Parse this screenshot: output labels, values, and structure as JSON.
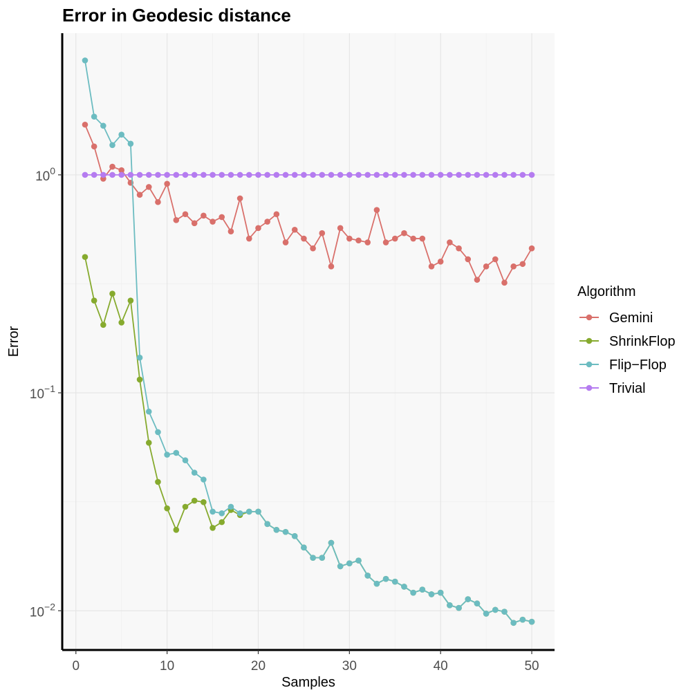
{
  "chart_data": {
    "type": "line",
    "title": "Error in Geodesic distance",
    "xlabel": "Samples",
    "ylabel": "Error",
    "xlim": [
      -1.5,
      52.5
    ],
    "ylim_log10": [
      -2.18,
      0.65
    ],
    "y_scale": "log10",
    "x_ticks": [
      0,
      10,
      20,
      30,
      40,
      50
    ],
    "y_ticks": [
      {
        "value": 1,
        "base": "10",
        "exp": "0"
      },
      {
        "value": 0.1,
        "base": "10",
        "exp": "−1"
      },
      {
        "value": 0.01,
        "base": "10",
        "exp": "−2"
      }
    ],
    "grid": true,
    "legend_title": "Algorithm",
    "legend_position": "right",
    "series": [
      {
        "name": "Gemini",
        "color": "#d9706b",
        "values": [
          1.7,
          1.35,
          0.96,
          1.09,
          1.05,
          0.92,
          0.81,
          0.88,
          0.75,
          0.91,
          0.62,
          0.66,
          0.6,
          0.65,
          0.61,
          0.64,
          0.55,
          0.78,
          0.51,
          0.57,
          0.61,
          0.66,
          0.49,
          0.56,
          0.51,
          0.46,
          0.54,
          0.38,
          0.57,
          0.51,
          0.5,
          0.49,
          0.69,
          0.49,
          0.51,
          0.54,
          0.51,
          0.51,
          0.38,
          0.4,
          0.49,
          0.46,
          0.41,
          0.33,
          0.38,
          0.41,
          0.32,
          0.38,
          0.39,
          0.46
        ]
      },
      {
        "name": "ShrinkFlop",
        "color": "#86aa2e",
        "values": [
          0.42,
          0.265,
          0.205,
          0.285,
          0.21,
          0.265,
          0.115,
          0.059,
          0.039,
          0.0295,
          0.0235,
          0.03,
          0.032,
          0.0315,
          0.024,
          0.0255,
          0.029,
          0.0275,
          0.0285,
          0.0285,
          0.025,
          0.0235,
          0.023,
          0.022,
          0.0195,
          0.0175,
          0.0175,
          0.0205,
          0.016,
          0.0165,
          0.017,
          0.0145,
          0.0133,
          0.014,
          0.0136,
          0.0129,
          0.0121,
          0.0125,
          0.0119,
          0.0121,
          0.0106,
          0.0103,
          0.0113,
          0.0108,
          0.0097,
          0.0101,
          0.0099,
          0.0088,
          0.0091,
          0.0089
        ]
      },
      {
        "name": "Flip−Flop",
        "color": "#6cbcc1",
        "values": [
          3.35,
          1.85,
          1.68,
          1.37,
          1.53,
          1.39,
          0.145,
          0.082,
          0.066,
          0.052,
          0.053,
          0.049,
          0.043,
          0.04,
          0.0285,
          0.028,
          0.03,
          0.028,
          0.0285,
          0.0285,
          0.025,
          0.0235,
          0.023,
          0.022,
          0.0195,
          0.0175,
          0.0175,
          0.0205,
          0.016,
          0.0165,
          0.017,
          0.0145,
          0.0133,
          0.014,
          0.0136,
          0.0129,
          0.0121,
          0.0125,
          0.0119,
          0.0121,
          0.0106,
          0.0103,
          0.0113,
          0.0108,
          0.0097,
          0.0101,
          0.0099,
          0.0088,
          0.0091,
          0.0089
        ]
      },
      {
        "name": "Trivial",
        "color": "#b57cf0",
        "values": [
          1,
          1,
          1,
          1,
          1,
          1,
          1,
          1,
          1,
          1,
          1,
          1,
          1,
          1,
          1,
          1,
          1,
          1,
          1,
          1,
          1,
          1,
          1,
          1,
          1,
          1,
          1,
          1,
          1,
          1,
          1,
          1,
          1,
          1,
          1,
          1,
          1,
          1,
          1,
          1,
          1,
          1,
          1,
          1,
          1,
          1,
          1,
          1,
          1,
          1
        ]
      }
    ]
  }
}
